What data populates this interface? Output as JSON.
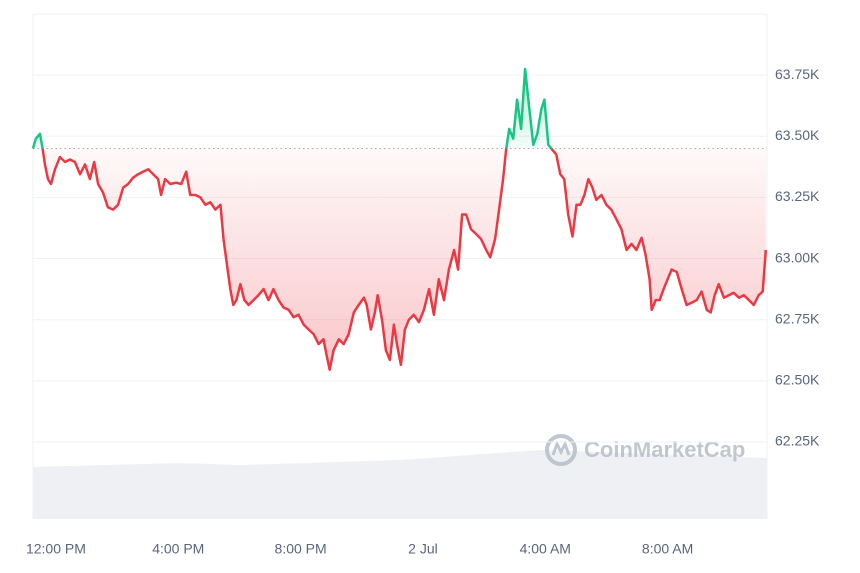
{
  "chart_data": {
    "type": "line",
    "watermark": "CoinMarketCap",
    "baseline": 63450,
    "colors": {
      "up": "#16c784",
      "down": "#ea3943"
    },
    "grid": true,
    "xlim": [
      -0.75,
      23.25
    ],
    "xticks": [
      {
        "value": 0,
        "label": "12:00 PM"
      },
      {
        "value": 4,
        "label": "4:00 PM"
      },
      {
        "value": 8,
        "label": "8:00 PM"
      },
      {
        "value": 12,
        "label": "2 Jul"
      },
      {
        "value": 16,
        "label": "4:00 AM"
      },
      {
        "value": 20,
        "label": "8:00 AM"
      }
    ],
    "ylim": [
      61935,
      64000
    ],
    "yticks": [
      {
        "value": 62250,
        "label": "62.25K"
      },
      {
        "value": 62500,
        "label": "62.50K"
      },
      {
        "value": 62750,
        "label": "62.75K"
      },
      {
        "value": 63000,
        "label": "63.00K"
      },
      {
        "value": 63250,
        "label": "63.25K"
      },
      {
        "value": 63500,
        "label": "63.50K"
      },
      {
        "value": 63750,
        "label": "63.75K"
      }
    ],
    "x": [
      -0.75,
      -0.66,
      -0.52,
      -0.43,
      -0.36,
      -0.26,
      -0.16,
      -0.03,
      0.13,
      0.3,
      0.46,
      0.62,
      0.79,
      0.95,
      1.11,
      1.25,
      1.38,
      1.54,
      1.7,
      1.87,
      2.03,
      2.2,
      2.36,
      2.52,
      2.69,
      2.85,
      3.02,
      3.18,
      3.34,
      3.44,
      3.57,
      3.74,
      3.93,
      4.1,
      4.26,
      4.39,
      4.56,
      4.72,
      4.89,
      5.05,
      5.21,
      5.38,
      5.48,
      5.57,
      5.7,
      5.8,
      5.9,
      6.03,
      6.16,
      6.3,
      6.46,
      6.62,
      6.79,
      6.95,
      7.11,
      7.28,
      7.44,
      7.61,
      7.77,
      7.93,
      8.1,
      8.26,
      8.43,
      8.59,
      8.75,
      8.85,
      8.95,
      9.08,
      9.25,
      9.41,
      9.57,
      9.74,
      9.9,
      10.07,
      10.16,
      10.3,
      10.43,
      10.52,
      10.66,
      10.79,
      10.92,
      11.05,
      11.15,
      11.28,
      11.41,
      11.54,
      11.7,
      11.87,
      12.03,
      12.2,
      12.36,
      12.52,
      12.69,
      12.85,
      13.02,
      13.15,
      13.28,
      13.41,
      13.57,
      13.74,
      13.9,
      14.07,
      14.2,
      14.36,
      14.49,
      14.62,
      14.72,
      14.82,
      14.95,
      15.08,
      15.21,
      15.34,
      15.48,
      15.61,
      15.74,
      15.87,
      15.97,
      16.1,
      16.23,
      16.36,
      16.49,
      16.62,
      16.75,
      16.89,
      17.02,
      17.15,
      17.28,
      17.41,
      17.54,
      17.67,
      17.84,
      18.0,
      18.16,
      18.33,
      18.49,
      18.66,
      18.82,
      18.98,
      19.15,
      19.28,
      19.41,
      19.48,
      19.61,
      19.74,
      19.87,
      20.0,
      20.13,
      20.3,
      20.46,
      20.62,
      20.79,
      20.95,
      21.11,
      21.28,
      21.41,
      21.54,
      21.67,
      21.84,
      22.0,
      22.16,
      22.33,
      22.49,
      22.66,
      22.82,
      22.98,
      23.11,
      23.21
    ],
    "values": [
      63450,
      63490,
      63510,
      63445,
      63385,
      63325,
      63305,
      63365,
      63415,
      63395,
      63405,
      63395,
      63345,
      63385,
      63325,
      63395,
      63305,
      63270,
      63210,
      63200,
      63220,
      63290,
      63305,
      63330,
      63345,
      63355,
      63365,
      63345,
      63325,
      63260,
      63325,
      63305,
      63310,
      63305,
      63355,
      63260,
      63260,
      63250,
      63220,
      63230,
      63200,
      63220,
      63080,
      62995,
      62875,
      62810,
      62830,
      62895,
      62830,
      62810,
      62830,
      62850,
      62875,
      62830,
      62875,
      62830,
      62800,
      62790,
      62760,
      62770,
      62730,
      62710,
      62690,
      62650,
      62670,
      62605,
      62545,
      62625,
      62670,
      62650,
      62690,
      62780,
      62810,
      62840,
      62810,
      62710,
      62780,
      62850,
      62750,
      62625,
      62585,
      62730,
      62650,
      62565,
      62710,
      62750,
      62770,
      62740,
      62790,
      62875,
      62770,
      62915,
      62830,
      62955,
      63035,
      62955,
      63180,
      63180,
      63120,
      63100,
      63080,
      63035,
      63005,
      63080,
      63200,
      63325,
      63445,
      63530,
      63490,
      63650,
      63530,
      63775,
      63610,
      63465,
      63510,
      63610,
      63650,
      63465,
      63445,
      63425,
      63345,
      63325,
      63180,
      63090,
      63220,
      63220,
      63260,
      63325,
      63290,
      63240,
      63260,
      63220,
      63200,
      63160,
      63120,
      63035,
      63060,
      63035,
      63085,
      63015,
      62915,
      62790,
      62830,
      62830,
      62875,
      62915,
      62955,
      62945,
      62875,
      62810,
      62820,
      62830,
      62865,
      62790,
      62780,
      62850,
      62895,
      62840,
      62850,
      62860,
      62840,
      62850,
      62830,
      62810,
      62850,
      62865,
      63035
    ]
  }
}
